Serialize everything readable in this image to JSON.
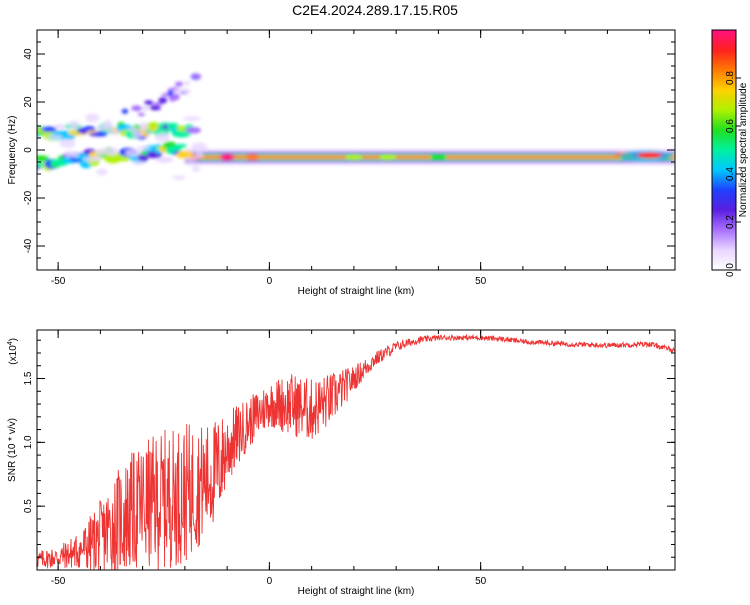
{
  "title": "C2E4.2024.289.17.15.R05",
  "chart_data": [
    {
      "type": "heatmap",
      "name": "spectrogram",
      "xlabel": "Height of straight line (km)",
      "ylabel": "Frequency (Hz)",
      "xlim": [
        -55,
        96
      ],
      "ylim": [
        -50,
        50
      ],
      "xticks": [
        -50,
        0,
        50
      ],
      "yticks": [
        -40,
        -20,
        0,
        20,
        40
      ],
      "colorbar": {
        "label": "Normalized spectral amplitude",
        "range": [
          0.0,
          1.0
        ],
        "ticks": [
          0.0,
          0.2,
          0.4,
          0.6,
          0.8
        ],
        "colors": [
          "#ffffff",
          "#e9d6ff",
          "#a770ff",
          "#5a1fe0",
          "#2040ff",
          "#00c8ff",
          "#00f0a0",
          "#20e020",
          "#b0f000",
          "#ffd000",
          "#ff7a00",
          "#ff2020",
          "#ff1080"
        ]
      },
      "features": [
        {
          "label": "carrier",
          "x_start": -20,
          "x_end": 96,
          "freq_hz": -3,
          "amplitude": 0.85
        },
        {
          "label": "upper branch",
          "x_start": -55,
          "x_end": -18,
          "freq_start_hz": 7,
          "freq_end_hz": 9,
          "amplitude": 0.45
        },
        {
          "label": "lower branch",
          "x_start": -55,
          "x_end": -20,
          "freq_start_hz": -5,
          "freq_end_hz": 0,
          "amplitude": 0.4
        }
      ]
    },
    {
      "type": "line",
      "name": "snr",
      "xlabel": "Height of straight line (km)",
      "ylabel": "SNR (10 * v/v)",
      "scale_label": "(x10",
      "scale_exp": "4",
      "xlim": [
        -55,
        96
      ],
      "ylim": [
        0,
        1.88
      ],
      "xticks": [
        -50,
        0,
        50
      ],
      "yticks": [
        0.5,
        1.0,
        1.5
      ],
      "ytick_labels": [
        "0.5",
        "1.0",
        "1.5"
      ],
      "color": "#ee3333",
      "envelope": {
        "x": [
          -55,
          -50,
          -45,
          -40,
          -35,
          -30,
          -25,
          -20,
          -15,
          -12,
          -10,
          -5,
          0,
          5,
          10,
          15,
          20,
          25,
          30,
          35,
          40,
          45,
          50,
          55,
          60,
          70,
          80,
          90,
          96
        ],
        "mean": [
          0.08,
          0.1,
          0.15,
          0.25,
          0.4,
          0.5,
          0.55,
          0.6,
          0.7,
          0.8,
          0.95,
          1.15,
          1.3,
          1.3,
          1.25,
          1.35,
          1.5,
          1.65,
          1.75,
          1.8,
          1.82,
          1.82,
          1.82,
          1.81,
          1.79,
          1.77,
          1.76,
          1.77,
          1.72
        ],
        "amp": [
          0.07,
          0.09,
          0.15,
          0.3,
          0.45,
          0.5,
          0.55,
          0.55,
          0.45,
          0.4,
          0.3,
          0.2,
          0.18,
          0.25,
          0.25,
          0.2,
          0.1,
          0.06,
          0.04,
          0.03,
          0.02,
          0.02,
          0.02,
          0.02,
          0.02,
          0.02,
          0.02,
          0.02,
          0.02
        ]
      }
    }
  ]
}
